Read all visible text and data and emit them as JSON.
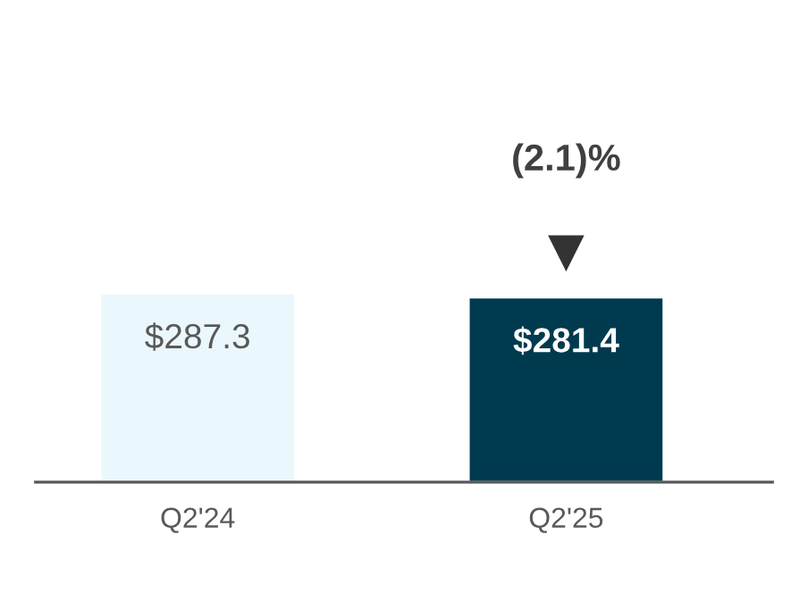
{
  "chart_data": {
    "type": "bar",
    "categories": [
      "Q2'24",
      "Q2'25"
    ],
    "values": [
      287.3,
      281.4
    ],
    "colors": [
      "#eaf8fd",
      "#003a4f"
    ],
    "value_labels": [
      "$287.3",
      "$281.4"
    ],
    "annotations": [
      "(2.1)%"
    ],
    "grid": false,
    "legend": false
  }
}
